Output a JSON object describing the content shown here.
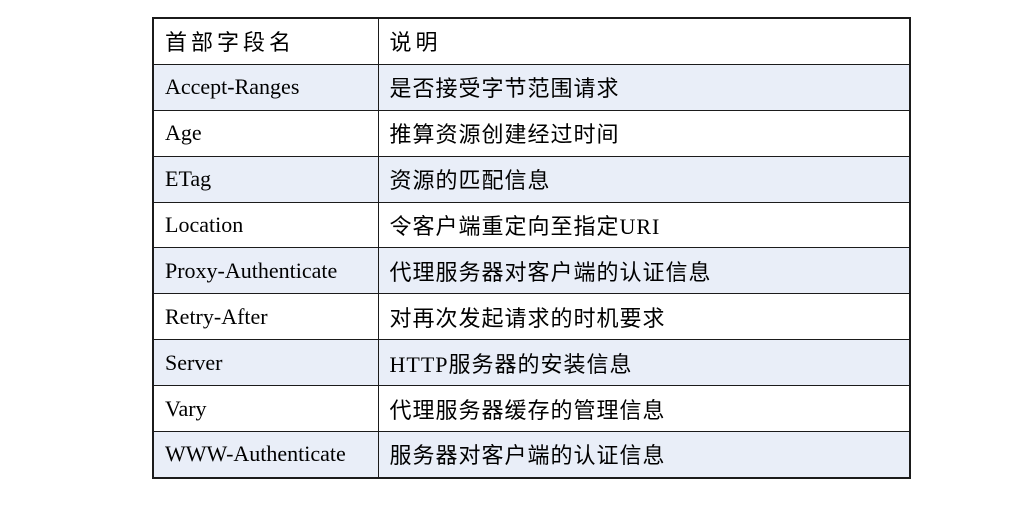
{
  "table": {
    "columns": [
      "首部字段名",
      "说明"
    ],
    "rows": [
      {
        "field": "Accept-Ranges",
        "description": "是否接受字节范围请求"
      },
      {
        "field": "Age",
        "description": "推算资源创建经过时间"
      },
      {
        "field": "ETag",
        "description": "资源的匹配信息"
      },
      {
        "field": "Location",
        "description": "令客户端重定向至指定URI"
      },
      {
        "field": "Proxy-Authenticate",
        "description": "代理服务器对客户端的认证信息"
      },
      {
        "field": "Retry-After",
        "description": "对再次发起请求的时机要求"
      },
      {
        "field": "Server",
        "description": "HTTP服务器的安装信息"
      },
      {
        "field": "Vary",
        "description": "代理服务器缓存的管理信息"
      },
      {
        "field": "WWW-Authenticate",
        "description": "服务器对客户端的认证信息"
      }
    ]
  },
  "colors": {
    "row_alt_background": "#e9eef8",
    "border": "#1b1b1b",
    "text": "#000000",
    "page_background": "#ffffff"
  }
}
